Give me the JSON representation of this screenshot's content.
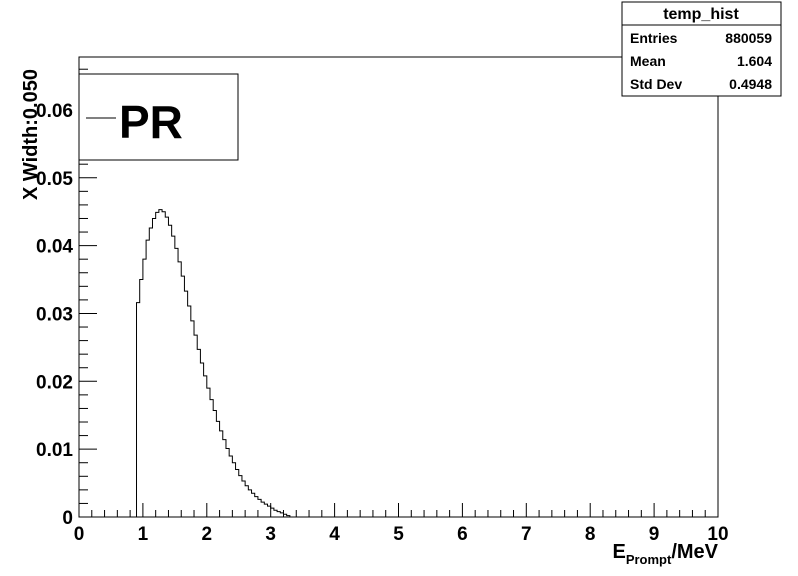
{
  "chart_data": {
    "type": "bar",
    "histogram": true,
    "xlabel_main": "E",
    "xlabel_sub": "Prompt",
    "xlabel_unit": "/MeV",
    "ylabel": "X Width:0.050",
    "xlim": [
      0,
      10
    ],
    "ylim": [
      0,
      0.0678
    ],
    "x_ticks": [
      "0",
      "1",
      "2",
      "3",
      "4",
      "5",
      "6",
      "7",
      "8",
      "9",
      "10"
    ],
    "y_ticks": [
      "0",
      "0.01",
      "0.02",
      "0.03",
      "0.04",
      "0.05",
      "0.06"
    ],
    "bin_width": 0.05,
    "bin_start": 0.9,
    "values": [
      0.0316,
      0.035,
      0.038,
      0.0408,
      0.0426,
      0.044,
      0.0449,
      0.0453,
      0.045,
      0.0442,
      0.043,
      0.0414,
      0.0396,
      0.0376,
      0.0355,
      0.0333,
      0.0311,
      0.0289,
      0.0268,
      0.0247,
      0.0227,
      0.0208,
      0.019,
      0.0173,
      0.0157,
      0.0141,
      0.0127,
      0.0114,
      0.0101,
      0.009,
      0.008,
      0.007,
      0.0061,
      0.0053,
      0.0046,
      0.004,
      0.0035,
      0.003,
      0.0026,
      0.0022,
      0.0019,
      0.0016,
      0.0013,
      0.001,
      0.0008,
      0.0006,
      0.0004,
      0.0002,
      0.0,
      0.0,
      0.0
    ],
    "legend": {
      "entry": "PR",
      "placement": "top-left"
    },
    "stats": {
      "title": "temp_hist",
      "rows": [
        {
          "label": "Entries",
          "value": "880059"
        },
        {
          "label": "Mean",
          "value": "1.604"
        },
        {
          "label": "Std Dev",
          "value": "0.4948"
        }
      ]
    }
  }
}
